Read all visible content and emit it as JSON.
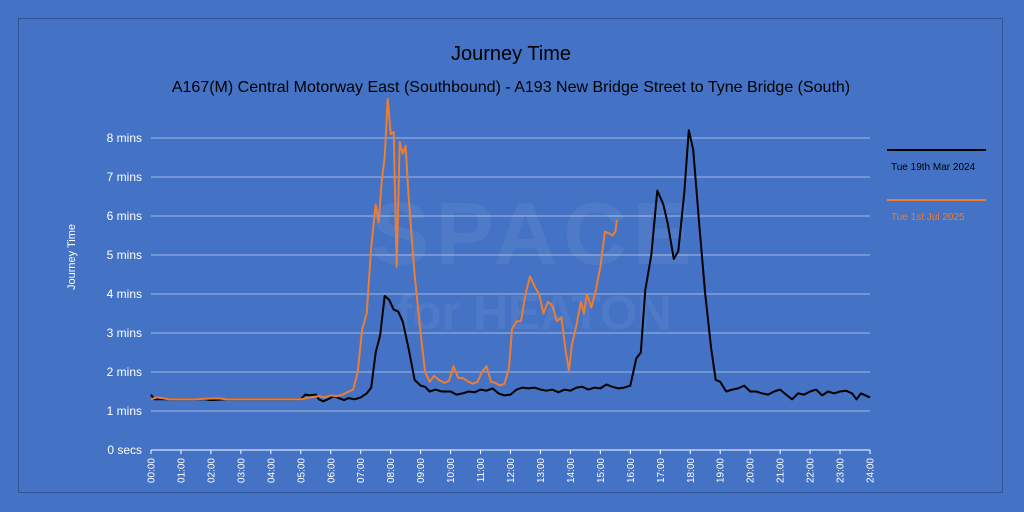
{
  "chart_data": {
    "type": "line",
    "title": "Journey Time",
    "subtitle": "A167(M) Central Motorway East (Southbound) - A193 New Bridge Street to Tyne Bridge (South)",
    "ylabel": "Journey Time",
    "xlabel": "",
    "x_range_hours": [
      0,
      24
    ],
    "ylim_minutes": [
      0,
      9
    ],
    "grid": "horizontal",
    "legend_position": "right",
    "y_ticks": [
      {
        "value": 0,
        "label": "0 secs"
      },
      {
        "value": 1,
        "label": "1 mins"
      },
      {
        "value": 2,
        "label": "2 mins"
      },
      {
        "value": 3,
        "label": "3 mins"
      },
      {
        "value": 4,
        "label": "4 mins"
      },
      {
        "value": 5,
        "label": "5 mins"
      },
      {
        "value": 6,
        "label": "6 mins"
      },
      {
        "value": 7,
        "label": "7 mins"
      },
      {
        "value": 8,
        "label": "8 mins"
      }
    ],
    "x_ticks": [
      "00:00",
      "01:00",
      "02:00",
      "03:00",
      "04:00",
      "05:00",
      "06:00",
      "07:00",
      "08:00",
      "09:00",
      "10:00",
      "11:00",
      "12:00",
      "13:00",
      "14:00",
      "15:00",
      "16:00",
      "17:00",
      "18:00",
      "19:00",
      "20:00",
      "21:00",
      "22:00",
      "23:00",
      "24:00"
    ],
    "series": [
      {
        "name": "Tue 19th Mar 2024",
        "color": "#000000",
        "points": [
          [
            0.0,
            1.42
          ],
          [
            0.1,
            1.3
          ],
          [
            0.5,
            1.3
          ],
          [
            1.0,
            1.3
          ],
          [
            1.5,
            1.3
          ],
          [
            1.8,
            1.3
          ],
          [
            2.0,
            1.28
          ],
          [
            2.5,
            1.3
          ],
          [
            3.0,
            1.3
          ],
          [
            3.5,
            1.3
          ],
          [
            4.0,
            1.3
          ],
          [
            4.5,
            1.3
          ],
          [
            5.0,
            1.3
          ],
          [
            5.15,
            1.42
          ],
          [
            5.3,
            1.4
          ],
          [
            5.5,
            1.42
          ],
          [
            5.6,
            1.3
          ],
          [
            5.75,
            1.25
          ],
          [
            5.9,
            1.3
          ],
          [
            6.1,
            1.38
          ],
          [
            6.3,
            1.32
          ],
          [
            6.45,
            1.28
          ],
          [
            6.6,
            1.33
          ],
          [
            6.8,
            1.3
          ],
          [
            7.0,
            1.35
          ],
          [
            7.2,
            1.45
          ],
          [
            7.35,
            1.6
          ],
          [
            7.5,
            2.5
          ],
          [
            7.65,
            2.95
          ],
          [
            7.8,
            3.95
          ],
          [
            7.95,
            3.85
          ],
          [
            8.1,
            3.6
          ],
          [
            8.25,
            3.55
          ],
          [
            8.4,
            3.3
          ],
          [
            8.6,
            2.6
          ],
          [
            8.8,
            1.8
          ],
          [
            9.0,
            1.65
          ],
          [
            9.15,
            1.62
          ],
          [
            9.3,
            1.5
          ],
          [
            9.5,
            1.55
          ],
          [
            9.7,
            1.5
          ],
          [
            10.0,
            1.5
          ],
          [
            10.2,
            1.42
          ],
          [
            10.4,
            1.45
          ],
          [
            10.6,
            1.5
          ],
          [
            10.8,
            1.48
          ],
          [
            11.0,
            1.55
          ],
          [
            11.2,
            1.52
          ],
          [
            11.4,
            1.58
          ],
          [
            11.6,
            1.45
          ],
          [
            11.8,
            1.4
          ],
          [
            12.0,
            1.42
          ],
          [
            12.2,
            1.55
          ],
          [
            12.4,
            1.6
          ],
          [
            12.6,
            1.58
          ],
          [
            12.8,
            1.6
          ],
          [
            13.0,
            1.55
          ],
          [
            13.2,
            1.52
          ],
          [
            13.4,
            1.55
          ],
          [
            13.6,
            1.48
          ],
          [
            13.8,
            1.55
          ],
          [
            14.0,
            1.52
          ],
          [
            14.2,
            1.6
          ],
          [
            14.4,
            1.62
          ],
          [
            14.6,
            1.55
          ],
          [
            14.8,
            1.6
          ],
          [
            15.0,
            1.58
          ],
          [
            15.2,
            1.68
          ],
          [
            15.4,
            1.62
          ],
          [
            15.6,
            1.58
          ],
          [
            15.8,
            1.6
          ],
          [
            16.0,
            1.65
          ],
          [
            16.2,
            2.35
          ],
          [
            16.35,
            2.5
          ],
          [
            16.5,
            4.1
          ],
          [
            16.7,
            5.0
          ],
          [
            16.9,
            6.65
          ],
          [
            17.1,
            6.3
          ],
          [
            17.25,
            5.8
          ],
          [
            17.45,
            4.9
          ],
          [
            17.6,
            5.1
          ],
          [
            17.8,
            6.6
          ],
          [
            17.95,
            8.2
          ],
          [
            18.1,
            7.7
          ],
          [
            18.3,
            5.8
          ],
          [
            18.5,
            4.0
          ],
          [
            18.7,
            2.6
          ],
          [
            18.85,
            1.8
          ],
          [
            19.0,
            1.75
          ],
          [
            19.2,
            1.5
          ],
          [
            19.4,
            1.55
          ],
          [
            19.6,
            1.58
          ],
          [
            19.8,
            1.65
          ],
          [
            20.0,
            1.5
          ],
          [
            20.2,
            1.5
          ],
          [
            20.4,
            1.45
          ],
          [
            20.6,
            1.42
          ],
          [
            20.8,
            1.5
          ],
          [
            21.0,
            1.55
          ],
          [
            21.2,
            1.42
          ],
          [
            21.4,
            1.3
          ],
          [
            21.6,
            1.45
          ],
          [
            21.8,
            1.42
          ],
          [
            22.0,
            1.5
          ],
          [
            22.2,
            1.55
          ],
          [
            22.4,
            1.4
          ],
          [
            22.6,
            1.5
          ],
          [
            22.8,
            1.45
          ],
          [
            23.0,
            1.5
          ],
          [
            23.2,
            1.52
          ],
          [
            23.4,
            1.45
          ],
          [
            23.55,
            1.3
          ],
          [
            23.7,
            1.45
          ],
          [
            23.85,
            1.4
          ],
          [
            24.0,
            1.35
          ]
        ]
      },
      {
        "name": "Tue 1st Jul 2025",
        "color": "#ed7d31",
        "points": [
          [
            0.0,
            1.3
          ],
          [
            0.2,
            1.35
          ],
          [
            0.6,
            1.3
          ],
          [
            1.0,
            1.3
          ],
          [
            1.5,
            1.3
          ],
          [
            2.0,
            1.32
          ],
          [
            2.3,
            1.32
          ],
          [
            2.5,
            1.3
          ],
          [
            3.0,
            1.3
          ],
          [
            4.0,
            1.3
          ],
          [
            5.0,
            1.3
          ],
          [
            5.3,
            1.35
          ],
          [
            5.6,
            1.38
          ],
          [
            5.8,
            1.35
          ],
          [
            6.0,
            1.4
          ],
          [
            6.2,
            1.38
          ],
          [
            6.4,
            1.42
          ],
          [
            6.6,
            1.5
          ],
          [
            6.75,
            1.55
          ],
          [
            6.9,
            2.0
          ],
          [
            7.05,
            3.1
          ],
          [
            7.2,
            3.5
          ],
          [
            7.35,
            5.2
          ],
          [
            7.5,
            6.3
          ],
          [
            7.6,
            5.85
          ],
          [
            7.7,
            6.9
          ],
          [
            7.8,
            7.5
          ],
          [
            7.9,
            9.0
          ],
          [
            8.0,
            8.1
          ],
          [
            8.1,
            8.15
          ],
          [
            8.2,
            4.7
          ],
          [
            8.3,
            7.9
          ],
          [
            8.4,
            7.6
          ],
          [
            8.5,
            7.8
          ],
          [
            8.6,
            6.5
          ],
          [
            8.8,
            4.5
          ],
          [
            9.0,
            3.0
          ],
          [
            9.15,
            2.0
          ],
          [
            9.3,
            1.75
          ],
          [
            9.45,
            1.9
          ],
          [
            9.6,
            1.8
          ],
          [
            9.8,
            1.72
          ],
          [
            9.95,
            1.78
          ],
          [
            10.1,
            2.15
          ],
          [
            10.25,
            1.85
          ],
          [
            10.4,
            1.85
          ],
          [
            10.6,
            1.75
          ],
          [
            10.75,
            1.7
          ],
          [
            10.9,
            1.75
          ],
          [
            11.05,
            2.0
          ],
          [
            11.2,
            2.15
          ],
          [
            11.35,
            1.75
          ],
          [
            11.5,
            1.72
          ],
          [
            11.65,
            1.65
          ],
          [
            11.8,
            1.7
          ],
          [
            11.95,
            2.1
          ],
          [
            12.05,
            3.1
          ],
          [
            12.2,
            3.3
          ],
          [
            12.35,
            3.3
          ],
          [
            12.5,
            4.0
          ],
          [
            12.65,
            4.45
          ],
          [
            12.8,
            4.2
          ],
          [
            12.95,
            4.0
          ],
          [
            13.1,
            3.5
          ],
          [
            13.25,
            3.8
          ],
          [
            13.4,
            3.7
          ],
          [
            13.55,
            3.3
          ],
          [
            13.7,
            3.4
          ],
          [
            13.85,
            2.5
          ],
          [
            13.95,
            2.05
          ],
          [
            14.05,
            2.7
          ],
          [
            14.2,
            3.2
          ],
          [
            14.35,
            3.8
          ],
          [
            14.45,
            3.5
          ],
          [
            14.55,
            4.0
          ],
          [
            14.7,
            3.65
          ],
          [
            14.85,
            4.1
          ],
          [
            15.0,
            4.7
          ],
          [
            15.15,
            5.6
          ],
          [
            15.3,
            5.55
          ],
          [
            15.4,
            5.5
          ],
          [
            15.5,
            5.6
          ],
          [
            15.55,
            5.9
          ]
        ]
      }
    ]
  }
}
